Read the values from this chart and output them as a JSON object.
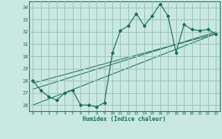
{
  "xlabel": "Humidex (Indice chaleur)",
  "bg_color": "#c8e8e0",
  "grid_color": "#9abfb8",
  "line_color": "#1a6b5a",
  "xlim": [
    -0.5,
    23.5
  ],
  "ylim": [
    25.5,
    34.5
  ],
  "xticks": [
    0,
    1,
    2,
    3,
    4,
    5,
    6,
    7,
    8,
    9,
    10,
    11,
    12,
    13,
    14,
    15,
    16,
    17,
    18,
    19,
    20,
    21,
    22,
    23
  ],
  "yticks": [
    26,
    27,
    28,
    29,
    30,
    31,
    32,
    33,
    34
  ],
  "series1_x": [
    0,
    1,
    2,
    3,
    4,
    5,
    6,
    7,
    8,
    9,
    10,
    11,
    12,
    13,
    14,
    15,
    16,
    17,
    18,
    19,
    20,
    21,
    22,
    23
  ],
  "series1_y": [
    28.0,
    27.2,
    26.7,
    26.4,
    27.0,
    27.2,
    26.0,
    26.0,
    25.85,
    26.2,
    30.3,
    32.1,
    32.5,
    33.5,
    32.5,
    33.3,
    34.3,
    33.3,
    30.3,
    32.6,
    32.2,
    32.1,
    32.2,
    31.85
  ],
  "trend1_x": [
    0,
    23
  ],
  "trend1_y": [
    27.3,
    32.0
  ],
  "trend2_x": [
    0,
    23
  ],
  "trend2_y": [
    27.8,
    31.85
  ],
  "trend3_x": [
    0,
    23
  ],
  "trend3_y": [
    26.0,
    31.85
  ]
}
